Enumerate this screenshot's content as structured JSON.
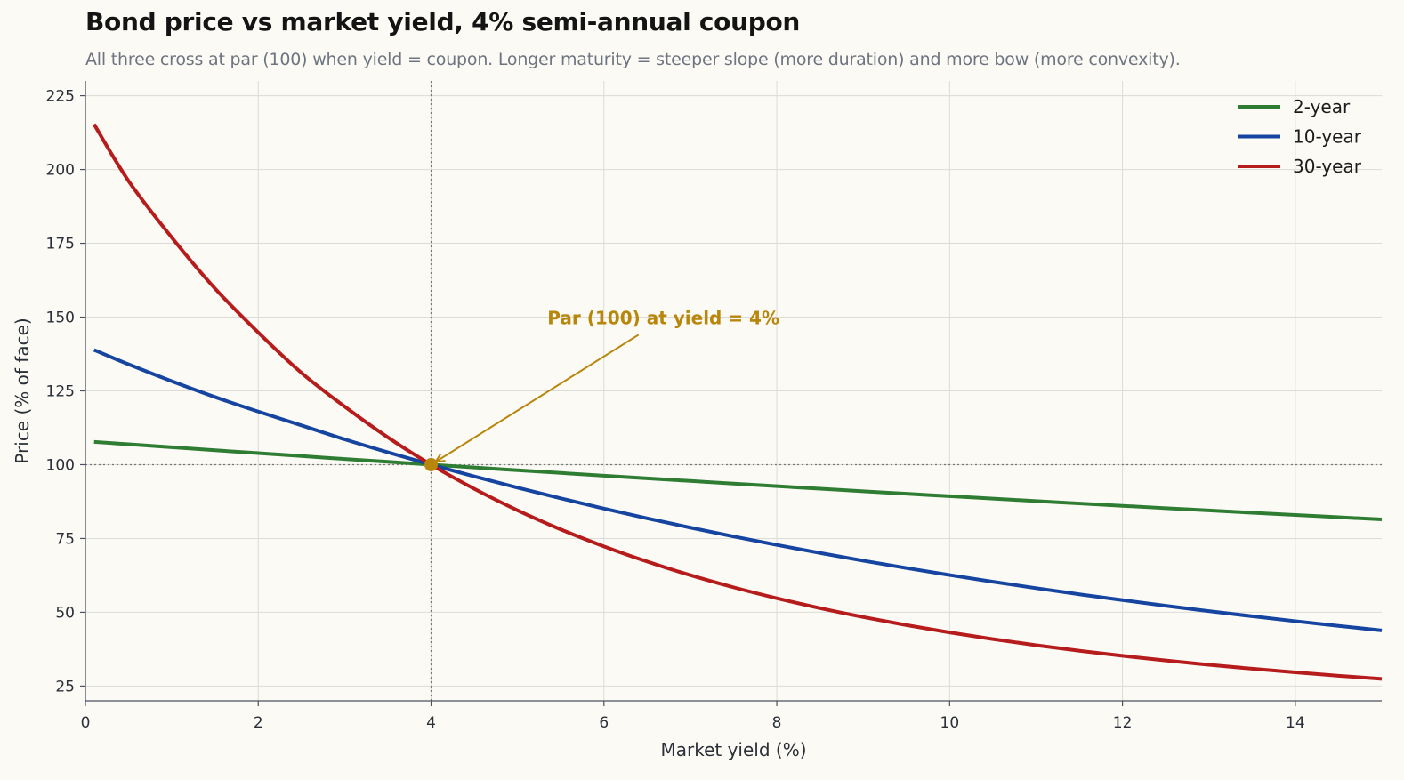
{
  "chart_data": {
    "type": "line",
    "title": "Bond price vs market yield, 4% semi-annual coupon",
    "subtitle": "All three cross at par (100) when yield = coupon. Longer maturity = steeper slope (more duration) and more bow (more convexity).",
    "xlabel": "Market yield (%)",
    "ylabel": "Price (% of face)",
    "xlim": [
      0,
      15
    ],
    "ylim": [
      20,
      230
    ],
    "x_ticks": [
      0,
      2,
      4,
      6,
      8,
      10,
      12,
      14
    ],
    "y_ticks": [
      25,
      50,
      75,
      100,
      125,
      150,
      175,
      200,
      225
    ],
    "grid": true,
    "legend_position": "top-right",
    "coupon_rate_pct": 4,
    "x": [
      0.1,
      0.5,
      1,
      1.5,
      2,
      2.5,
      3,
      3.5,
      4,
      4.5,
      5,
      5.5,
      6,
      6.5,
      7,
      7.5,
      8,
      8.5,
      9,
      9.5,
      10,
      10.5,
      11,
      11.5,
      12,
      12.5,
      13,
      13.5,
      14,
      14.5,
      15
    ],
    "series": [
      {
        "name": "2-year",
        "color": "#2e7d32",
        "values": [
          107.73,
          106.91,
          105.89,
          104.89,
          103.9,
          102.92,
          101.93,
          100.96,
          100.0,
          99.05,
          98.12,
          97.19,
          96.28,
          95.37,
          94.48,
          93.59,
          92.72,
          91.86,
          91.0,
          90.16,
          89.32,
          88.5,
          87.68,
          86.87,
          86.07,
          85.28,
          84.5,
          83.73,
          82.97,
          82.21,
          81.46
        ]
      },
      {
        "name": "10-year",
        "color": "#1545a0",
        "values": [
          138.87,
          133.99,
          128.27,
          122.91,
          117.99,
          113.3,
          108.58,
          104.19,
          100.0,
          96.01,
          92.21,
          88.59,
          85.12,
          81.82,
          78.68,
          75.68,
          72.82,
          70.09,
          67.48,
          64.99,
          62.61,
          60.34,
          58.17,
          56.09,
          54.11,
          52.21,
          50.39,
          48.65,
          46.98,
          45.38,
          43.85
        ]
      },
      {
        "name": "30-year",
        "color": "#b71c1c",
        "values": [
          215.32,
          196.08,
          176.95,
          159.67,
          144.79,
          131.11,
          119.68,
          109.24,
          100.0,
          91.82,
          84.55,
          78.08,
          72.32,
          67.18,
          62.57,
          58.45,
          54.74,
          51.39,
          48.38,
          45.64,
          43.16,
          40.9,
          38.84,
          36.96,
          35.24,
          33.66,
          32.21,
          30.87,
          29.63,
          28.49,
          27.43
        ]
      }
    ],
    "reference_lines": {
      "vertical_x": 4,
      "horizontal_y": 100
    },
    "annotation": {
      "text": "Par (100) at yield = 4%",
      "point": [
        4,
        100
      ],
      "text_anchor_data": [
        6.4,
        144
      ],
      "color": "#b8860b"
    }
  }
}
